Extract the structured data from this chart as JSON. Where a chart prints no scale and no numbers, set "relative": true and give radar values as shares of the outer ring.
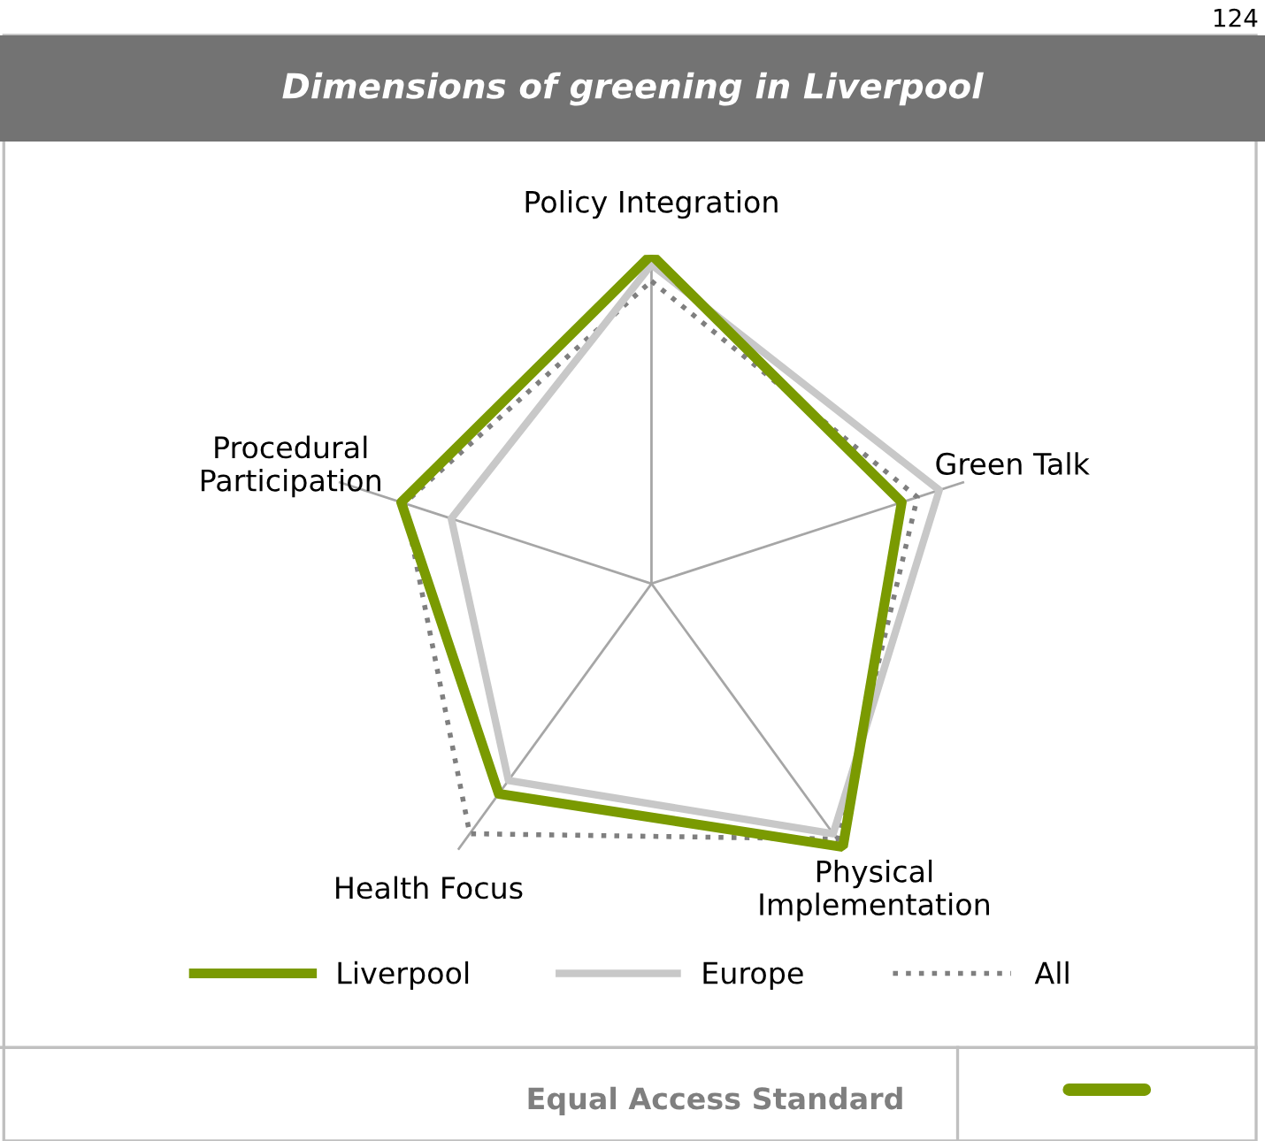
{
  "chart_data": {
    "type": "radar",
    "title": "Dimensions of greening in Liverpool",
    "relative": true,
    "categories": [
      "Policy Integration",
      "Green Talk",
      "Physical\nImplementation",
      "Health Focus",
      "Procedural\nParticipation"
    ],
    "series": [
      {
        "name": "Liverpool",
        "color": "#7a9a01",
        "values": [
          1.0,
          0.8,
          0.99,
          0.79,
          0.8
        ],
        "line_style": "solid"
      },
      {
        "name": "Europe",
        "color": "#c8c8c8",
        "values": [
          0.97,
          0.92,
          0.94,
          0.74,
          0.64
        ],
        "line_style": "solid"
      },
      {
        "name": "All",
        "color": "#7f7f7f",
        "values": [
          0.92,
          0.85,
          0.96,
          0.94,
          0.79
        ],
        "line_style": "dotted"
      }
    ],
    "grid": "x",
    "legend": "bottom",
    "marker": "none",
    "annotations": [
      "124",
      "Equal Access Standard"
    ]
  }
}
